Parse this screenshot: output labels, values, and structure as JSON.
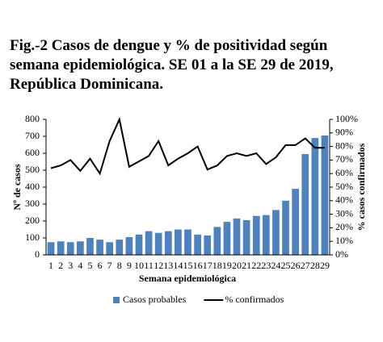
{
  "chart_data": {
    "type": "bar-line",
    "title": [
      "Fig.-2 Casos de dengue y % de positividad según",
      "semana epidemiológica. SE 01 a la SE 29 de 2019,",
      "República Dominicana."
    ],
    "x_label": "Semana epidemiológica",
    "y_label": "Nº de casos",
    "y2_label": "% casos confirmados",
    "categories": [
      "1",
      "2",
      "3",
      "4",
      "5",
      "6",
      "7",
      "8",
      "9",
      "10",
      "11",
      "12",
      "13",
      "14",
      "15",
      "16",
      "17",
      "18",
      "19",
      "20",
      "21",
      "22",
      "23",
      "24",
      "25",
      "26",
      "27",
      "28",
      "29"
    ],
    "series": [
      {
        "name": "Casos probables",
        "type": "bar",
        "color": "#4f81bd",
        "values": [
          75,
          80,
          75,
          80,
          100,
          90,
          75,
          90,
          105,
          120,
          140,
          130,
          140,
          150,
          150,
          120,
          115,
          165,
          195,
          215,
          205,
          230,
          235,
          265,
          320,
          390,
          595,
          690,
          705
        ]
      },
      {
        "name": "% confirmados",
        "type": "line",
        "axis": "y2",
        "color": "#000000",
        "values": [
          64,
          66,
          70,
          62,
          71,
          60,
          84,
          100,
          65,
          69,
          73,
          84,
          66,
          71,
          75,
          80,
          63,
          66,
          73,
          75,
          73,
          75,
          67,
          72,
          81,
          81,
          86,
          79,
          79
        ]
      }
    ],
    "ylim": [
      0,
      800
    ],
    "yticks": [
      0,
      100,
      200,
      300,
      400,
      500,
      600,
      700,
      800
    ],
    "y2lim": [
      0,
      100
    ],
    "y2ticks": [
      {
        "value": 0,
        "label": "0%"
      },
      {
        "value": 10,
        "label": "10%"
      },
      {
        "value": 20,
        "label": "20%"
      },
      {
        "value": 30,
        "label": "30%"
      },
      {
        "value": 40,
        "label": "40%"
      },
      {
        "value": 50,
        "label": "50%"
      },
      {
        "value": 60,
        "label": "60%"
      },
      {
        "value": 70,
        "label": "70%"
      },
      {
        "value": 80,
        "label": "80%"
      },
      {
        "value": 90,
        "label": "90%"
      },
      {
        "value": 100,
        "label": "100%"
      }
    ],
    "legend": "bottom"
  }
}
